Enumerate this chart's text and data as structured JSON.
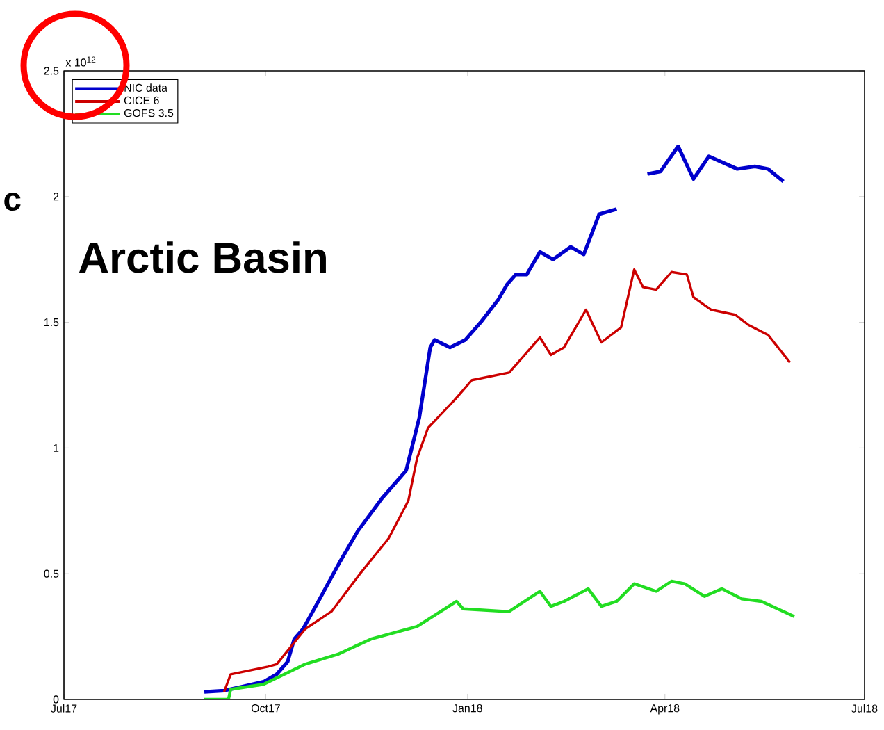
{
  "chart_data": {
    "type": "line",
    "title": "Arctic Basin",
    "annotations": [
      "x 10$^{12}$",
      "c"
    ],
    "xlim": [
      "2017-07-01",
      "2018-07-01"
    ],
    "xticks": [
      {
        "value": "2017-07-01",
        "label": "Jul17"
      },
      {
        "value": "2017-10-01",
        "label": "Oct17"
      },
      {
        "value": "2018-01-01",
        "label": "Jan18"
      },
      {
        "value": "2018-04-01",
        "label": "Apr18"
      },
      {
        "value": "2018-07-01",
        "label": "Jul18"
      }
    ],
    "ylim": [
      0,
      2.5
    ],
    "yticks": [
      0,
      0.5,
      1,
      1.5,
      2,
      2.5
    ],
    "grid": false,
    "legend": "top left",
    "marker": "none",
    "line_style": "solid",
    "series": [
      {
        "name": "NIC data",
        "color": "#0000cc",
        "x": [
          "2017-09-03",
          "2017-09-12",
          "2017-09-20",
          "2017-09-30",
          "2017-10-06",
          "2017-10-11",
          "2017-10-14",
          "2017-10-18",
          "2017-10-25",
          "2017-11-04",
          "2017-11-12",
          "2017-11-23",
          "2017-12-01",
          "2017-12-04",
          "2017-12-10",
          "2017-12-15",
          "2017-12-17",
          "2017-12-24",
          "2017-12-31",
          "2018-01-07",
          "2018-01-15",
          "2018-01-19",
          "2018-01-23",
          "2018-01-28",
          "2018-02-03",
          "2018-02-09",
          "2018-02-17",
          "2018-02-23",
          "2018-03-02",
          "2018-03-10",
          "2018-03-17",
          "2018-03-24",
          "2018-03-30",
          "2018-04-07",
          "2018-04-14",
          "2018-04-21",
          "2018-05-04",
          "2018-05-12",
          "2018-05-18",
          "2018-05-25"
        ],
        "values": [
          0.03,
          0.035,
          0.05,
          0.07,
          0.1,
          0.15,
          0.24,
          0.28,
          0.39,
          0.55,
          0.67,
          0.8,
          0.88,
          0.91,
          1.12,
          1.4,
          1.43,
          1.4,
          1.43,
          1.5,
          1.59,
          1.65,
          1.69,
          1.69,
          1.78,
          1.75,
          1.8,
          1.77,
          1.93,
          1.95,
          null,
          2.09,
          2.1,
          2.2,
          2.07,
          2.16,
          2.11,
          2.12,
          2.11,
          2.06
        ]
      },
      {
        "name": "CICE 6",
        "color": "#cc0000",
        "x": [
          "2017-09-12",
          "2017-09-15",
          "2017-10-02",
          "2017-10-06",
          "2017-10-19",
          "2017-10-31",
          "2017-11-13",
          "2017-11-26",
          "2017-12-05",
          "2017-12-09",
          "2017-12-14",
          "2017-12-26",
          "2018-01-03",
          "2018-01-20",
          "2018-02-03",
          "2018-02-08",
          "2018-02-14",
          "2018-02-24",
          "2018-03-03",
          "2018-03-12",
          "2018-03-18",
          "2018-03-22",
          "2018-03-28",
          "2018-04-04",
          "2018-04-11",
          "2018-04-14",
          "2018-04-22",
          "2018-05-03",
          "2018-05-09",
          "2018-05-18",
          "2018-05-28"
        ],
        "values": [
          0.03,
          0.1,
          0.13,
          0.14,
          0.28,
          0.35,
          0.5,
          0.64,
          0.79,
          0.96,
          1.08,
          1.19,
          1.27,
          1.3,
          1.44,
          1.37,
          1.4,
          1.55,
          1.42,
          1.48,
          1.71,
          1.64,
          1.63,
          1.7,
          1.69,
          1.6,
          1.55,
          1.53,
          1.49,
          1.45,
          1.34
        ]
      },
      {
        "name": "GOFS 3.5",
        "color": "#22dd22",
        "x": [
          "2017-09-03",
          "2017-09-14",
          "2017-09-15",
          "2017-09-30",
          "2017-10-19",
          "2017-11-03",
          "2017-11-18",
          "2017-12-09",
          "2017-12-27",
          "2017-12-30",
          "2018-01-18",
          "2018-01-20",
          "2018-02-03",
          "2018-02-08",
          "2018-02-14",
          "2018-02-25",
          "2018-03-03",
          "2018-03-10",
          "2018-03-18",
          "2018-03-28",
          "2018-04-04",
          "2018-04-10",
          "2018-04-19",
          "2018-04-27",
          "2018-05-06",
          "2018-05-15",
          "2018-05-30"
        ],
        "values": [
          0,
          0,
          0.04,
          0.06,
          0.14,
          0.18,
          0.24,
          0.29,
          0.39,
          0.36,
          0.35,
          0.35,
          0.43,
          0.37,
          0.39,
          0.44,
          0.37,
          0.39,
          0.46,
          0.43,
          0.47,
          0.46,
          0.41,
          0.44,
          0.4,
          0.39,
          0.33
        ]
      }
    ]
  }
}
